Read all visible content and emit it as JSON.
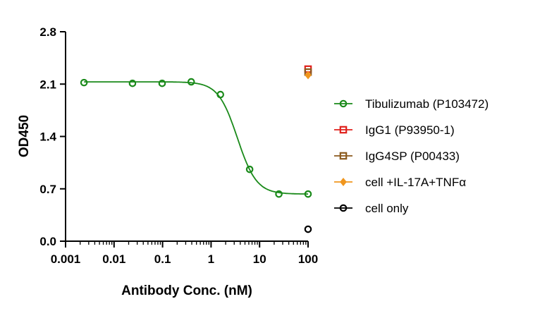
{
  "chart_data": {
    "type": "scatter",
    "title": "",
    "xlabel": "Antibody Conc. (nM)",
    "ylabel": "OD450",
    "xscale": "log",
    "xlim": [
      0.001,
      100
    ],
    "ylim": [
      0,
      2.8
    ],
    "xticks": [
      0.001,
      0.01,
      0.1,
      1,
      10,
      100
    ],
    "xtick_labels": [
      "0.001",
      "0.01",
      "0.1",
      "1",
      "10",
      "100"
    ],
    "yticks": [
      0,
      0.7,
      1.4,
      2.1,
      2.8
    ],
    "ytick_labels": [
      "0.0",
      "0.7",
      "1.4",
      "2.1",
      "2.8"
    ],
    "grid": false,
    "legend_position": "right",
    "series": [
      {
        "name": "Tibulizumab (P103472)",
        "color": "#1a8a1a",
        "marker": "circle",
        "fit_curve": true,
        "x": [
          0.0024,
          0.024,
          0.098,
          0.39,
          1.56,
          6.25,
          25,
          100
        ],
        "y": [
          2.12,
          2.11,
          2.11,
          2.13,
          1.96,
          0.96,
          0.63,
          0.63
        ]
      },
      {
        "name": "IgG1 (P93950-1)",
        "color": "#e0201b",
        "marker": "square",
        "x": [
          100
        ],
        "y": [
          2.3
        ]
      },
      {
        "name": "IgG4SP (P00433)",
        "color": "#8b5a1e",
        "marker": "square",
        "x": [
          100
        ],
        "y": [
          2.26
        ]
      },
      {
        "name": "cell +IL-17A+TNFα",
        "color": "#f0961e",
        "marker": "diamond",
        "x": [
          100
        ],
        "y": [
          2.22
        ]
      },
      {
        "name": "cell only",
        "color": "#000000",
        "marker": "circle",
        "x": [
          100
        ],
        "y": [
          0.16
        ]
      }
    ]
  }
}
